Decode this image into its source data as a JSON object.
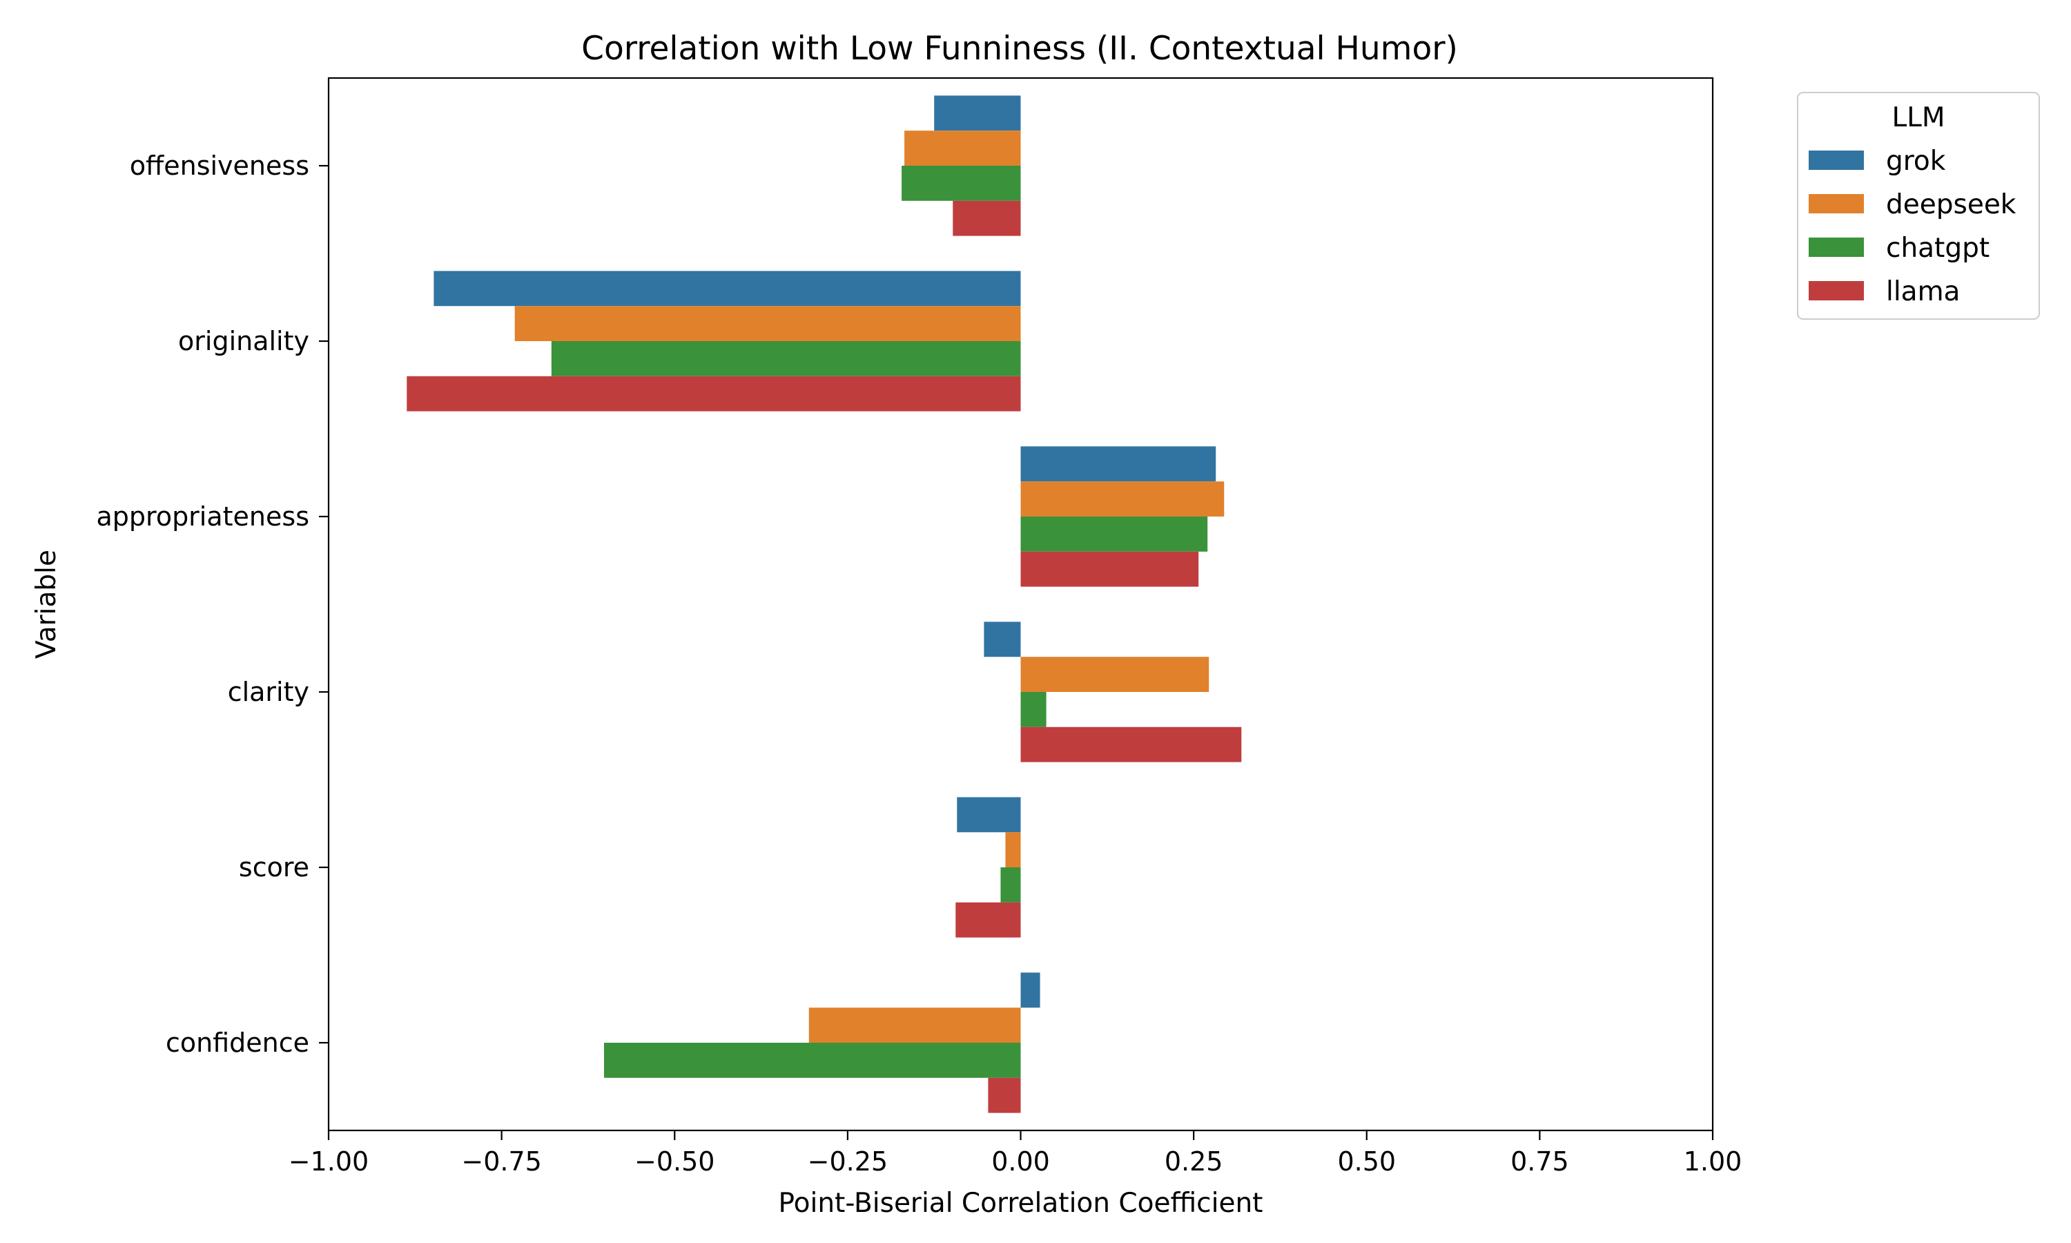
{
  "chart_data": {
    "type": "bar",
    "orientation": "horizontal",
    "title": "Correlation with Low Funniness (II. Contextual Humor)",
    "xlabel": "Point-Biserial Correlation Coefficient",
    "ylabel": "Variable",
    "xlim": [
      -1.0,
      1.0
    ],
    "xticks": [
      -1.0,
      -0.75,
      -0.5,
      -0.25,
      0.0,
      0.25,
      0.5,
      0.75,
      1.0
    ],
    "xtick_labels": [
      "−1.00",
      "−0.75",
      "−0.50",
      "−0.25",
      "0.00",
      "0.25",
      "0.50",
      "0.75",
      "1.00"
    ],
    "categories": [
      "offensiveness",
      "originality",
      "appropriateness",
      "clarity",
      "score",
      "confidence"
    ],
    "legend_title": "LLM",
    "legend_position": "outside-top-right",
    "grid": false,
    "series": [
      {
        "name": "grok",
        "color": "#3274a1",
        "values": [
          -0.125,
          -0.848,
          0.282,
          -0.053,
          -0.092,
          0.028
        ]
      },
      {
        "name": "deepseek",
        "color": "#e1812c",
        "values": [
          -0.168,
          -0.731,
          0.294,
          0.272,
          -0.022,
          -0.306
        ]
      },
      {
        "name": "chatgpt",
        "color": "#3a923a",
        "values": [
          -0.172,
          -0.678,
          0.27,
          0.037,
          -0.029,
          -0.602
        ]
      },
      {
        "name": "llama",
        "color": "#c03d3e",
        "values": [
          -0.098,
          -0.887,
          0.257,
          0.319,
          -0.094,
          -0.047
        ]
      }
    ]
  }
}
